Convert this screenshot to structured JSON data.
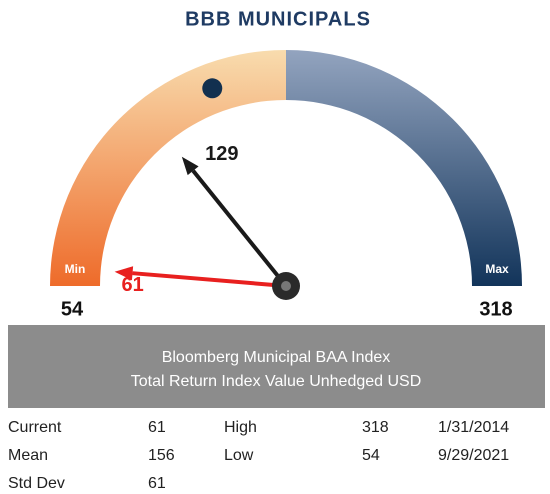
{
  "chart_data": {
    "type": "gauge",
    "title": "BBB MUNICIPALS",
    "min": 54,
    "max": 318,
    "min_label": "Min",
    "max_label": "Max",
    "needles": [
      {
        "value": 61,
        "color": "#e8201f"
      },
      {
        "value": 129,
        "color": "#1a1a1a"
      }
    ],
    "marker": 156,
    "marker_color": "#12304f"
  },
  "table": {
    "header": [
      "Bloomberg Municipal BAA Index",
      "Total Return Index Value Unhedged USD"
    ],
    "rows": [
      [
        "Current",
        61,
        "High",
        318,
        "1/31/2014"
      ],
      [
        "Mean",
        156,
        "Low",
        54,
        "9/29/2021"
      ],
      [
        "Std Dev",
        61
      ]
    ]
  }
}
